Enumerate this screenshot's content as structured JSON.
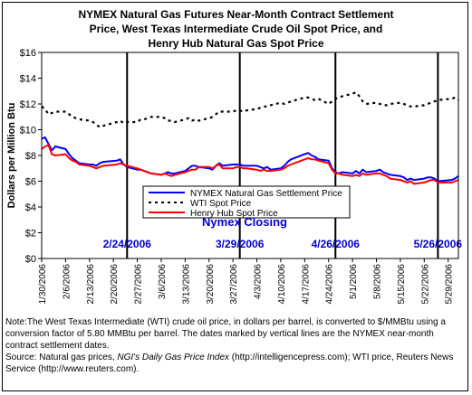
{
  "title_lines": [
    "NYMEX Natural Gas Futures Near-Month Contract Settlement",
    "Price, West Texas Intermediate Crude Oil Spot Price, and",
    "Henry Hub Natural Gas Spot Price"
  ],
  "note": {
    "text1": "Note:The West Texas Intermediate (WTI) crude oil price, in dollars per barrel,  is converted to $/MMBtu using a conversion factor of 5.80 MMBtu per barrel.  The dates marked by vertical lines are the NYMEX near-month contract settlement dates.",
    "source_prefix": "Source: Natural gas prices, ",
    "source_italic": "NGI's Daily Gas Price Index",
    "source_suffix": " (http://intelligencepress.com); WTI price, Reuters News Service (http://www.reuters.com)."
  },
  "colors": {
    "nymex": "#0000FF",
    "wti": "#000000",
    "henry": "#FF0000",
    "annotation": "#0000CC"
  },
  "chart_data": {
    "type": "line",
    "ylabel": "Dollars per Million Btu",
    "ylim": [
      0,
      16
    ],
    "y_ticks": [
      "$0",
      "$2",
      "$4",
      "$6",
      "$8",
      "$10",
      "$12",
      "$14",
      "$16"
    ],
    "x_tick_labels": [
      "1/30/2006",
      "2/6/2006",
      "2/13/2006",
      "2/20/2006",
      "2/27/2006",
      "3/6/2006",
      "3/13/2006",
      "3/20/2006",
      "3/27/2006",
      "4/3/2006",
      "4/10/2006",
      "4/17/2006",
      "4/24/2006",
      "5/1/2006",
      "5/8/2006",
      "5/15/2006",
      "5/22/2006",
      "5/29/2006"
    ],
    "x_range": [
      "1/30/2006",
      "6/1/2006"
    ],
    "grid": false,
    "legend_position": "center",
    "closing_label": "Nymex Closing",
    "closing_dates": [
      "2/24/2006",
      "3/29/2006",
      "4/26/2006",
      "5/26/2006"
    ],
    "dates": [
      "1/30/2006",
      "1/31/2006",
      "2/1/2006",
      "2/2/2006",
      "2/3/2006",
      "2/6/2006",
      "2/7/2006",
      "2/8/2006",
      "2/9/2006",
      "2/10/2006",
      "2/13/2006",
      "2/14/2006",
      "2/15/2006",
      "2/16/2006",
      "2/17/2006",
      "2/21/2006",
      "2/22/2006",
      "2/23/2006",
      "2/24/2006",
      "2/27/2006",
      "2/28/2006",
      "3/1/2006",
      "3/2/2006",
      "3/3/2006",
      "3/6/2006",
      "3/7/2006",
      "3/8/2006",
      "3/9/2006",
      "3/10/2006",
      "3/13/2006",
      "3/14/2006",
      "3/15/2006",
      "3/16/2006",
      "3/17/2006",
      "3/20/2006",
      "3/21/2006",
      "3/22/2006",
      "3/23/2006",
      "3/24/2006",
      "3/27/2006",
      "3/28/2006",
      "3/29/2006",
      "3/30/2006",
      "3/31/2006",
      "4/3/2006",
      "4/4/2006",
      "4/5/2006",
      "4/6/2006",
      "4/7/2006",
      "4/10/2006",
      "4/11/2006",
      "4/12/2006",
      "4/13/2006",
      "4/17/2006",
      "4/18/2006",
      "4/19/2006",
      "4/20/2006",
      "4/21/2006",
      "4/24/2006",
      "4/25/2006",
      "4/26/2006",
      "4/27/2006",
      "4/28/2006",
      "5/1/2006",
      "5/2/2006",
      "5/3/2006",
      "5/4/2006",
      "5/5/2006",
      "5/8/2006",
      "5/9/2006",
      "5/10/2006",
      "5/11/2006",
      "5/12/2006",
      "5/15/2006",
      "5/16/2006",
      "5/17/2006",
      "5/18/2006",
      "5/19/2006",
      "5/22/2006",
      "5/23/2006",
      "5/24/2006",
      "5/25/2006",
      "5/26/2006",
      "5/30/2006",
      "5/31/2006",
      "6/1/2006"
    ],
    "series": [
      {
        "name": "NYMEX Natural Gas Settlement Price",
        "style": "solid",
        "values": [
          9.3,
          9.4,
          8.9,
          8.4,
          8.7,
          8.5,
          8.1,
          7.8,
          7.6,
          7.4,
          7.3,
          7.3,
          7.2,
          7.4,
          7.5,
          7.6,
          7.7,
          7.3,
          7.1,
          6.9,
          6.9,
          6.8,
          6.7,
          6.6,
          6.5,
          6.6,
          6.7,
          6.6,
          6.6,
          6.8,
          7.0,
          7.2,
          7.2,
          7.1,
          7.0,
          6.9,
          7.2,
          7.4,
          7.2,
          7.3,
          7.3,
          7.3,
          7.2,
          7.2,
          7.2,
          7.1,
          7.0,
          7.1,
          6.9,
          7.0,
          7.2,
          7.5,
          7.7,
          8.1,
          8.2,
          8.0,
          7.9,
          7.7,
          7.6,
          7.0,
          6.7,
          6.6,
          6.7,
          6.6,
          6.8,
          6.6,
          6.9,
          6.7,
          6.8,
          6.9,
          6.7,
          6.6,
          6.5,
          6.4,
          6.3,
          6.1,
          6.2,
          6.1,
          6.2,
          6.3,
          6.3,
          6.2,
          6.0,
          6.1,
          6.2,
          6.4
        ]
      },
      {
        "name": "WTI Spot Price",
        "style": "dotted",
        "values": [
          11.8,
          11.6,
          11.2,
          11.3,
          11.4,
          11.4,
          11.2,
          11.0,
          10.9,
          10.8,
          10.7,
          10.6,
          10.4,
          10.2,
          10.3,
          10.6,
          10.7,
          10.5,
          10.6,
          10.6,
          10.8,
          10.8,
          10.9,
          11.0,
          11.0,
          10.9,
          10.7,
          10.7,
          10.6,
          10.8,
          10.9,
          10.7,
          10.8,
          10.7,
          10.9,
          11.0,
          11.2,
          11.4,
          11.4,
          11.4,
          11.5,
          11.5,
          11.4,
          11.5,
          11.6,
          11.7,
          11.8,
          11.8,
          11.9,
          12.1,
          12.0,
          12.1,
          12.2,
          12.5,
          12.5,
          12.4,
          12.3,
          12.4,
          12.0,
          12.2,
          12.4,
          12.5,
          12.6,
          12.8,
          12.9,
          12.6,
          12.2,
          12.0,
          12.1,
          12.0,
          11.9,
          11.9,
          12.0,
          12.1,
          12.0,
          11.9,
          11.8,
          11.8,
          11.9,
          12.0,
          12.1,
          12.2,
          12.3,
          12.4,
          12.5,
          12.3
        ]
      },
      {
        "name": "Henry Hub Spot Price",
        "style": "solid",
        "values": [
          8.5,
          8.7,
          8.8,
          8.1,
          8.0,
          8.1,
          7.8,
          7.6,
          7.5,
          7.3,
          7.2,
          7.1,
          7.0,
          7.1,
          7.2,
          7.3,
          7.4,
          7.3,
          7.2,
          7.0,
          6.9,
          6.8,
          6.7,
          6.6,
          6.5,
          6.6,
          6.5,
          6.4,
          6.5,
          6.7,
          6.8,
          6.9,
          6.9,
          7.1,
          7.1,
          7.0,
          7.2,
          7.3,
          7.0,
          7.0,
          7.1,
          7.1,
          7.0,
          7.0,
          6.9,
          6.8,
          6.9,
          6.8,
          6.8,
          6.9,
          7.0,
          7.2,
          7.3,
          7.7,
          7.8,
          7.7,
          7.7,
          7.6,
          7.4,
          6.9,
          6.6,
          6.6,
          6.5,
          6.4,
          6.5,
          6.4,
          6.6,
          6.5,
          6.6,
          6.6,
          6.5,
          6.4,
          6.2,
          6.1,
          6.0,
          5.9,
          6.0,
          5.8,
          5.9,
          6.0,
          6.1,
          6.1,
          5.9,
          5.9,
          6.0,
          6.1
        ]
      }
    ]
  }
}
